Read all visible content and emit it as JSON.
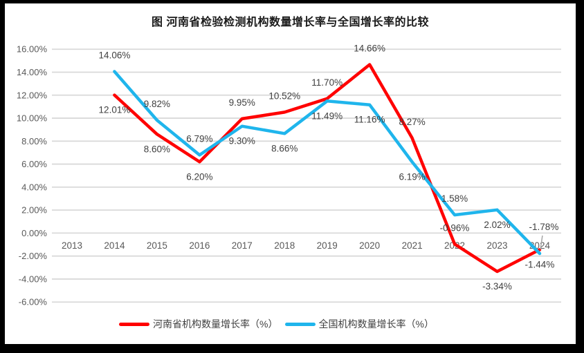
{
  "chart_data": {
    "type": "line",
    "title": "图  河南省检验检测机构数量增长率与全国增长率的比较",
    "xlabel": "",
    "ylabel": "",
    "categories": [
      "2013",
      "2014",
      "2015",
      "2016",
      "2017",
      "2018",
      "2019",
      "2020",
      "2021",
      "2022",
      "2023",
      "2024"
    ],
    "y_ticks": [
      "16.00%",
      "14.00%",
      "12.00%",
      "10.00%",
      "8.00%",
      "6.00%",
      "4.00%",
      "2.00%",
      "0.00%",
      "-2.00%",
      "-4.00%",
      "-6.00%"
    ],
    "ylim": [
      -6,
      16
    ],
    "grid": true,
    "legend_position": "bottom",
    "series": [
      {
        "name": "河南省机构数量增长率（%）",
        "color": "#FF0000",
        "values": [
          null,
          12.01,
          8.6,
          6.2,
          9.95,
          10.52,
          11.7,
          14.66,
          8.27,
          -0.96,
          -3.34,
          -1.44
        ],
        "labels": [
          null,
          "12.01%",
          "8.60%",
          "6.20%",
          "9.95%",
          "10.52%",
          "11.70%",
          "14.66%",
          "8.27%",
          "-0.96%",
          "-3.34%",
          "-1.44%"
        ],
        "label_pos": [
          null,
          "below",
          "below",
          "below",
          "above",
          "above",
          "above",
          "above",
          "above",
          "above",
          "below",
          "below"
        ]
      },
      {
        "name": "全国机构数量增长率（%）",
        "color": "#1FB5EC",
        "values": [
          null,
          14.06,
          9.82,
          6.79,
          9.3,
          8.66,
          11.49,
          11.16,
          6.19,
          1.58,
          2.02,
          -1.78
        ],
        "labels": [
          null,
          "14.06%",
          "9.82%",
          "6.79%",
          "9.30%",
          "8.66%",
          "11.49%",
          "11.16%",
          "6.19%",
          "1.58%",
          "2.02%",
          "-1.78%"
        ],
        "label_pos": [
          null,
          "above",
          "above",
          "above",
          "below",
          "below",
          "below",
          "below",
          "below",
          "above",
          "below",
          "above-leader"
        ]
      }
    ],
    "colors": {
      "grid": "#D9D9D9",
      "tick_text": "#595959",
      "data_label_text": "#3F3F3F",
      "leader_line": "#A6A6A6",
      "frame": "#000000",
      "background": "#FFFFFF"
    }
  }
}
